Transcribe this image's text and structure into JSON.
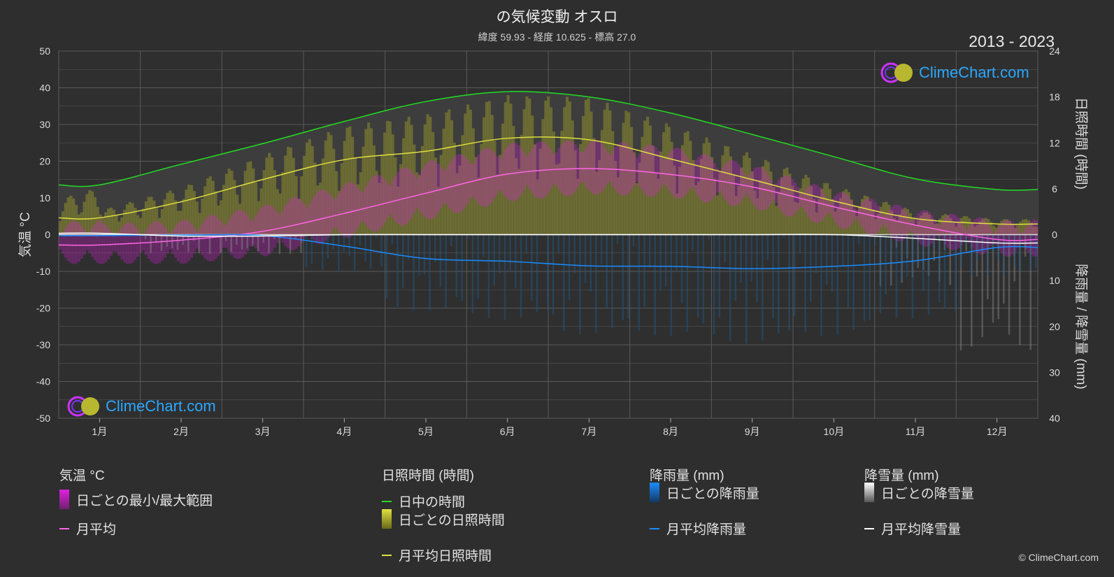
{
  "header": {
    "title": "の気候変動 オスロ",
    "subtitle": "緯度 59.93 - 経度 10.625 - 標高 27.0",
    "years": "2013 - 2023"
  },
  "axes": {
    "left_label": "気温 °C",
    "right_top_label": "日照時間 (時間)",
    "right_bottom_label": "降雨量 / 降雪量 (mm)"
  },
  "legend": {
    "temp": {
      "head": "気温 °C",
      "range": "日ごとの最小/最大範囲",
      "avg": "月平均"
    },
    "sun": {
      "head": "日照時間 (時間)",
      "daylight": "日中の時間",
      "daily": "日ごとの日照時間",
      "avg": "月平均日照時間"
    },
    "rain": {
      "head": "降雨量 (mm)",
      "daily": "日ごとの降雨量",
      "avg": "月平均降雨量"
    },
    "snow": {
      "head": "降雪量 (mm)",
      "daily": "日ごとの降雪量",
      "avg": "月平均降雪量"
    }
  },
  "logo_text": "ClimeChart.com",
  "copyright": "© ClimeChart.com",
  "colors": {
    "daylight": "#22dd22",
    "sunshine": "#e0e040",
    "temp_avg": "#ff66e6",
    "temp_range": "#e020e0",
    "rain": "#1a8cff",
    "snow": "#ffffff",
    "grid": "#5a5a5a"
  },
  "chart_data": {
    "type": "line",
    "categories": [
      "1月",
      "2月",
      "3月",
      "4月",
      "5月",
      "6月",
      "7月",
      "8月",
      "9月",
      "10月",
      "11月",
      "12月"
    ],
    "left_axis": {
      "label": "気温 °C",
      "ylim": [
        -50,
        50
      ],
      "ticks": [
        50,
        40,
        30,
        20,
        10,
        0,
        -10,
        -20,
        -30,
        -40,
        -50
      ]
    },
    "right_axis_top": {
      "label": "日照時間 (時間)",
      "ylim": [
        0,
        24
      ],
      "ticks": [
        24,
        18,
        12,
        6,
        0
      ]
    },
    "right_axis_bottom": {
      "label": "降雨量 / 降雪量 (mm)",
      "ylim": [
        0,
        40
      ],
      "ticks": [
        0,
        10,
        20,
        30,
        40
      ]
    },
    "series": [
      {
        "name": "日中の時間",
        "axis": "sunshine",
        "values": [
          6.5,
          9.2,
          11.9,
          14.8,
          17.4,
          18.7,
          18.0,
          15.9,
          13.1,
          10.2,
          7.3,
          5.9
        ]
      },
      {
        "name": "月平均日照時間",
        "axis": "sunshine",
        "values": [
          2.2,
          4.3,
          7.2,
          9.8,
          10.9,
          12.6,
          12.4,
          9.9,
          7.2,
          4.4,
          2.1,
          1.4
        ]
      },
      {
        "name": "月平均",
        "axis": "temperature",
        "values": [
          -2.8,
          -1.5,
          0.9,
          5.8,
          11.3,
          16.5,
          18.0,
          16.4,
          13.0,
          7.6,
          2.6,
          -1.3
        ]
      },
      {
        "name": "月平均降雨量",
        "axis": "precipitation",
        "values": [
          0.2,
          0.1,
          0.2,
          2.5,
          5.2,
          5.8,
          6.8,
          6.9,
          7.4,
          6.9,
          5.7,
          2.8
        ]
      },
      {
        "name": "月平均降雪量",
        "axis": "precipitation",
        "values": [
          -0.3,
          0.3,
          0.3,
          0.0,
          0.0,
          0.0,
          0.0,
          0.0,
          0.0,
          0.0,
          0.8,
          1.8
        ]
      }
    ],
    "temperature_range": {
      "min": [
        -6,
        -6,
        -4,
        1,
        6,
        11,
        13,
        12,
        9,
        4,
        -1,
        -4
      ],
      "max": [
        1,
        2,
        6,
        12,
        18,
        23,
        24,
        22,
        17,
        10,
        5,
        2
      ]
    },
    "grid": true
  }
}
